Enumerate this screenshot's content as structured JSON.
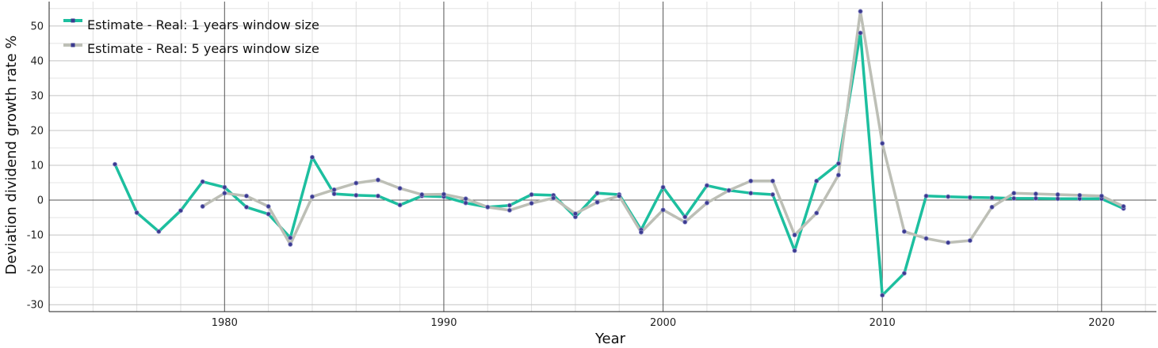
{
  "chart_data": {
    "type": "line",
    "xlabel": "Year",
    "ylabel": "Deviation dividend growth rate %",
    "xlim": [
      1972,
      2022.5
    ],
    "ylim": [
      -32,
      57
    ],
    "x_ticks": [
      1980,
      1990,
      2000,
      2010,
      2020
    ],
    "y_ticks": [
      -30,
      -20,
      -10,
      0,
      10,
      20,
      30,
      40,
      50
    ],
    "grid": true,
    "legend_position": "top-left",
    "marker_color": "#3b3a8f",
    "series": [
      {
        "name": "Estimate - Real: 1 years window size",
        "color": "#1dbf9f",
        "x": [
          1975,
          1976,
          1977,
          1978,
          1979,
          1980,
          1981,
          1982,
          1983,
          1984,
          1985,
          1986,
          1987,
          1988,
          1989,
          1990,
          1991,
          1992,
          1993,
          1994,
          1995,
          1996,
          1997,
          1998,
          1999,
          2000,
          2001,
          2002,
          2003,
          2004,
          2005,
          2006,
          2007,
          2008,
          2009,
          2010,
          2011,
          2012,
          2013,
          2014,
          2015,
          2016,
          2017,
          2018,
          2019,
          2020,
          2021
        ],
        "values": [
          10.3,
          -3.6,
          -9,
          -3,
          5.3,
          3.7,
          -2,
          -4,
          -10.8,
          12.3,
          1.8,
          1.4,
          1.2,
          -1.4,
          1.2,
          1,
          -0.8,
          -2,
          -1.5,
          1.6,
          1.4,
          -4.8,
          2,
          1.6,
          -8.5,
          3.7,
          -4.8,
          4.2,
          2.8,
          2,
          1.6,
          -14.5,
          5.5,
          10.5,
          48,
          -27.3,
          -21,
          1.2,
          1,
          0.8,
          0.7,
          0.5,
          0.5,
          0.4,
          0.4,
          0.4,
          -2.4
        ]
      },
      {
        "name": "Estimate - Real: 5 years window size",
        "color": "#bdbfb6",
        "x": [
          1979,
          1980,
          1981,
          1982,
          1983,
          1984,
          1985,
          1986,
          1987,
          1988,
          1989,
          1990,
          1991,
          1992,
          1993,
          1994,
          1995,
          1996,
          1997,
          1998,
          1999,
          2000,
          2001,
          2002,
          2003,
          2004,
          2005,
          2006,
          2007,
          2008,
          2009,
          2010,
          2011,
          2012,
          2013,
          2014,
          2015,
          2016,
          2017,
          2018,
          2019,
          2020,
          2021
        ],
        "values": [
          -1.8,
          2,
          1.2,
          -1.8,
          -12.7,
          1,
          3,
          4.9,
          5.8,
          3.4,
          1.6,
          1.7,
          0.4,
          -2,
          -2.9,
          -0.9,
          0.6,
          -3.9,
          -0.6,
          1.2,
          -9.2,
          -2.8,
          -6.3,
          -0.8,
          2.8,
          5.5,
          5.5,
          -10,
          -3.7,
          7.2,
          54.2,
          16.3,
          -9,
          -11,
          -12.2,
          -11.6,
          -2,
          2,
          1.8,
          1.6,
          1.4,
          1.2,
          -1.8
        ]
      }
    ]
  }
}
